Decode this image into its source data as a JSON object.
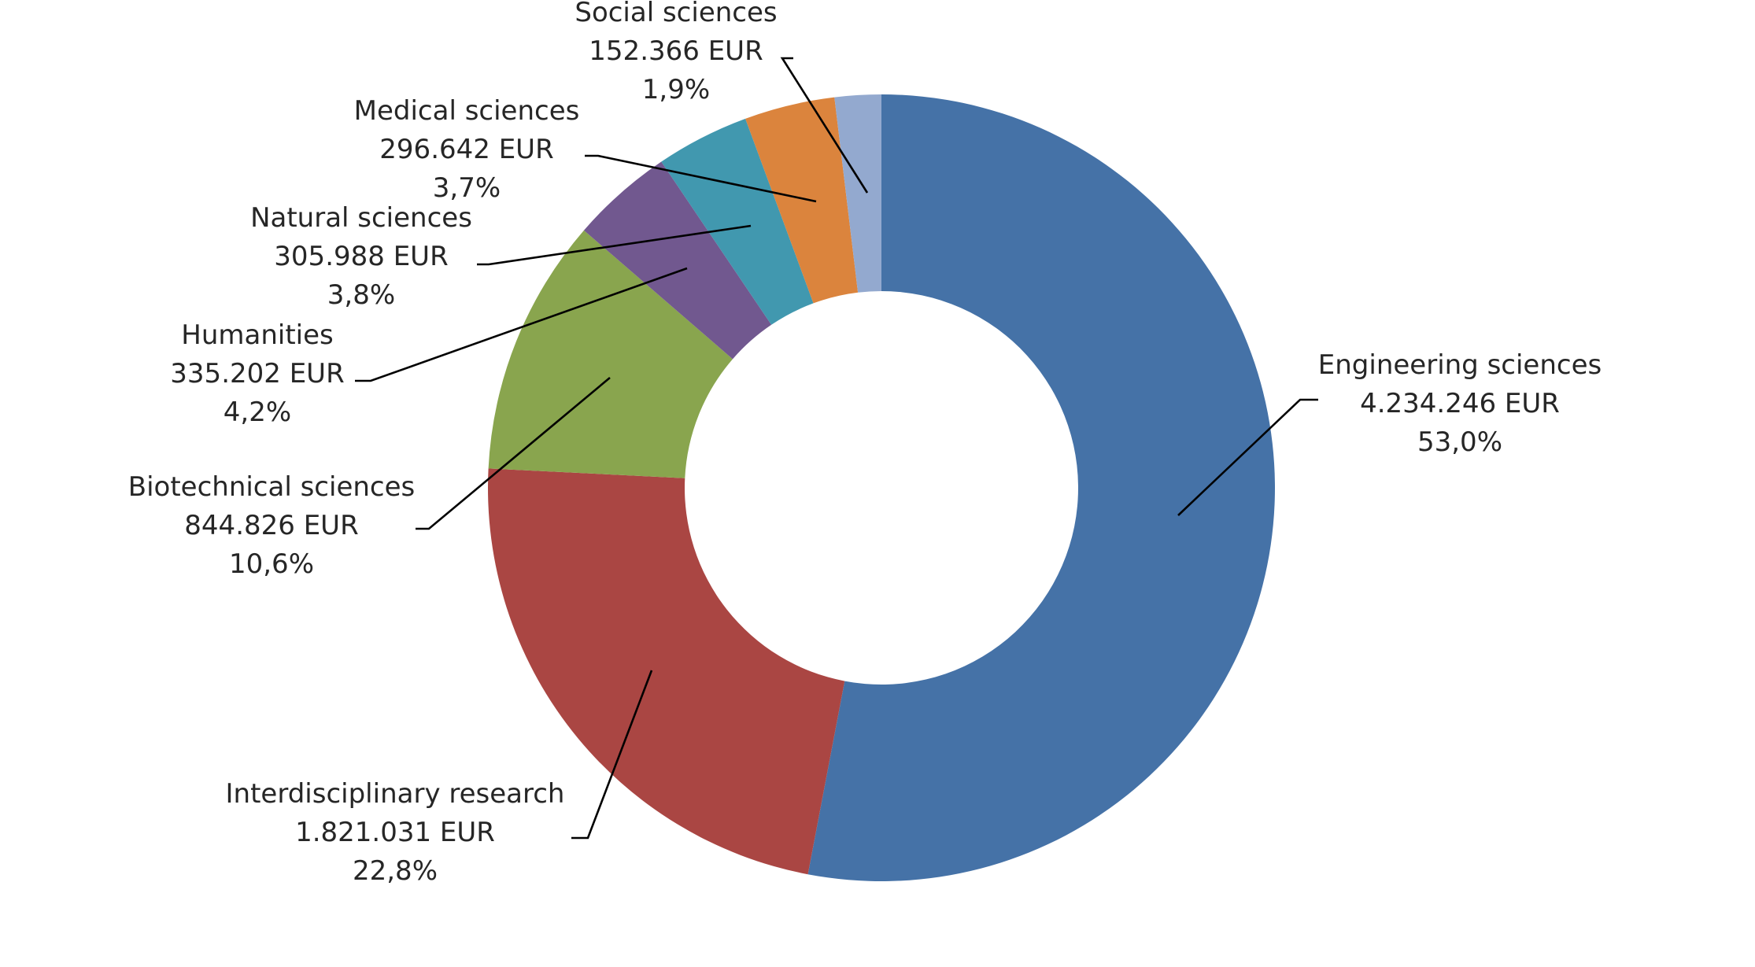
{
  "chart_data": {
    "type": "pie",
    "variant": "donut",
    "start_angle_deg": 0,
    "direction": "clockwise",
    "slices": [
      {
        "label": "Engineering sciences",
        "amount": "4.234.246 EUR",
        "percent": "53,0%",
        "value": 4234246,
        "color": "#4572a7"
      },
      {
        "label": "Interdisciplinary research",
        "amount": "1.821.031 EUR",
        "percent": "22,8%",
        "value": 1821031,
        "color": "#aa4643"
      },
      {
        "label": "Biotechnical sciences",
        "amount": "844.826 EUR",
        "percent": "10,6%",
        "value": 844826,
        "color": "#89a54e"
      },
      {
        "label": "Humanities",
        "amount": "335.202 EUR",
        "percent": "4,2%",
        "value": 335202,
        "color": "#71588f"
      },
      {
        "label": "Natural sciences",
        "amount": "305.988 EUR",
        "percent": "3,8%",
        "value": 305988,
        "color": "#4198af"
      },
      {
        "label": "Medical sciences",
        "amount": "296.642 EUR",
        "percent": "3,7%",
        "value": 296642,
        "color": "#db843d"
      },
      {
        "label": "Social sciences",
        "amount": "152.366 EUR",
        "percent": "1,9%",
        "value": 152366,
        "color": "#93a9cf"
      }
    ]
  }
}
